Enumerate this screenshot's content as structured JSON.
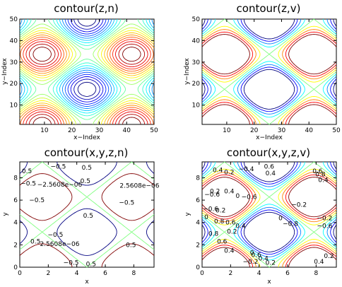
{
  "chart_data": [
    {
      "type": "contour",
      "title": "contour(z,n)",
      "xlabel": "x−Index",
      "ylabel": "y−Index",
      "xlim": [
        1,
        50
      ],
      "ylim": [
        1,
        50
      ],
      "xticks": [
        10,
        20,
        30,
        40,
        50
      ],
      "yticks": [
        10,
        20,
        30,
        40,
        50
      ],
      "level_count": 20,
      "contour_labels": []
    },
    {
      "type": "contour",
      "title": "contour(z,v)",
      "xlabel": "x−Index",
      "ylabel": "y−Index",
      "xlim": [
        1,
        50
      ],
      "ylim": [
        1,
        50
      ],
      "xticks": [
        10,
        20,
        30,
        40,
        50
      ],
      "yticks": [
        10,
        20,
        30,
        40,
        50
      ],
      "levels": [
        -0.8,
        -0.6,
        -0.4,
        -0.2,
        0,
        0.2,
        0.4,
        0.6,
        0.8
      ],
      "contour_labels": []
    },
    {
      "type": "contour",
      "title": "contour(x,y,z,n)",
      "xlabel": "x",
      "ylabel": "y",
      "xlim": [
        0,
        9.42
      ],
      "ylim": [
        0,
        9.42
      ],
      "xticks": [
        0,
        2,
        4,
        6,
        8
      ],
      "yticks": [
        0,
        2,
        4,
        6,
        8
      ],
      "levels": [
        -0.5,
        0,
        0.5
      ],
      "contour_labels": [
        {
          "text": "−0.5",
          "x": 2.7,
          "y": 9.0
        },
        {
          "text": "0.5",
          "x": 4.7,
          "y": 8.9
        },
        {
          "text": "0.5",
          "x": 0.5,
          "y": 8.6
        },
        {
          "text": "−0.5",
          "x": 0.6,
          "y": 7.5
        },
        {
          "text": "−2.5608e−06",
          "x": 2.8,
          "y": 7.4
        },
        {
          "text": "0.5",
          "x": 4.6,
          "y": 7.7
        },
        {
          "text": "2.5608e−06",
          "x": 8.4,
          "y": 7.3
        },
        {
          "text": "−0.5",
          "x": 1.2,
          "y": 6.0
        },
        {
          "text": "−0.5",
          "x": 7.5,
          "y": 5.8
        },
        {
          "text": "0.5",
          "x": 4.8,
          "y": 4.6
        },
        {
          "text": "−0.5",
          "x": 2.5,
          "y": 2.9
        },
        {
          "text": "2.5608e−06",
          "x": 2.8,
          "y": 2.1
        },
        {
          "text": "0.5",
          "x": 1.1,
          "y": 2.3
        },
        {
          "text": "0.5",
          "x": 7.8,
          "y": 2.0
        },
        {
          "text": "−0.5",
          "x": 3.6,
          "y": 0.4
        },
        {
          "text": "0.5",
          "x": 5.0,
          "y": 0.3
        }
      ]
    },
    {
      "type": "contour",
      "title": "contour(x,y,z,v)",
      "xlabel": "x",
      "ylabel": "y",
      "xlim": [
        0,
        9.42
      ],
      "ylim": [
        0,
        9.42
      ],
      "xticks": [
        0,
        2,
        4,
        6,
        8
      ],
      "yticks": [
        0,
        2,
        4,
        6,
        8
      ],
      "levels": [
        -0.8,
        -0.6,
        -0.4,
        -0.2,
        0,
        0.2,
        0.4,
        0.6,
        0.8
      ],
      "contour_labels": [
        {
          "text": "0.4",
          "x": 1.1,
          "y": 8.7
        },
        {
          "text": "0.2",
          "x": 1.9,
          "y": 8.5
        },
        {
          "text": "−0.4",
          "x": 3.1,
          "y": 8.8
        },
        {
          "text": "0.6",
          "x": 4.7,
          "y": 9.0
        },
        {
          "text": "0.4",
          "x": 4.8,
          "y": 8.4
        },
        {
          "text": "0.6",
          "x": 8.1,
          "y": 8.6
        },
        {
          "text": "0.8",
          "x": 8.3,
          "y": 8.3
        },
        {
          "text": "0.4",
          "x": 8.5,
          "y": 7.8
        },
        {
          "text": "−0.6",
          "x": 0.7,
          "y": 6.5
        },
        {
          "text": "0.2",
          "x": 0.9,
          "y": 6.8
        },
        {
          "text": "0.4",
          "x": 1.9,
          "y": 6.8
        },
        {
          "text": "0",
          "x": 2.5,
          "y": 6.4
        },
        {
          "text": "−0.6",
          "x": 3.3,
          "y": 6.3
        },
        {
          "text": "−0.2",
          "x": 6.8,
          "y": 5.6
        },
        {
          "text": "−0.6",
          "x": 0.6,
          "y": 5.2
        },
        {
          "text": "0.2",
          "x": 1.3,
          "y": 5.1
        },
        {
          "text": "0",
          "x": 0.3,
          "y": 4.5
        },
        {
          "text": "0.8",
          "x": 1.2,
          "y": 4.1
        },
        {
          "text": "0.6",
          "x": 2.0,
          "y": 4.0
        },
        {
          "text": "0.4",
          "x": 2.7,
          "y": 3.7
        },
        {
          "text": "0.2",
          "x": 2.1,
          "y": 3.2
        },
        {
          "text": "−0.8",
          "x": 6.2,
          "y": 3.9
        },
        {
          "text": "0",
          "x": 5.5,
          "y": 4.4
        },
        {
          "text": "−0.2",
          "x": 8.6,
          "y": 4.4
        },
        {
          "text": "−0.6",
          "x": 8.6,
          "y": 3.7
        },
        {
          "text": "0.8",
          "x": 0.8,
          "y": 3.0
        },
        {
          "text": "0.6",
          "x": 1.4,
          "y": 2.3
        },
        {
          "text": "0.4",
          "x": 1.9,
          "y": 1.5
        },
        {
          "text": "0",
          "x": 3.5,
          "y": 1.3
        },
        {
          "text": "0.6",
          "x": 3.8,
          "y": 1.1
        },
        {
          "text": "0.4",
          "x": 4.3,
          "y": 0.8
        },
        {
          "text": "−0.2",
          "x": 3.4,
          "y": 0.5
        },
        {
          "text": "0.2",
          "x": 4.8,
          "y": 0.4
        },
        {
          "text": "0.4",
          "x": 8.2,
          "y": 0.5
        },
        {
          "text": "0.2",
          "x": 8.9,
          "y": 1.0
        }
      ]
    }
  ]
}
